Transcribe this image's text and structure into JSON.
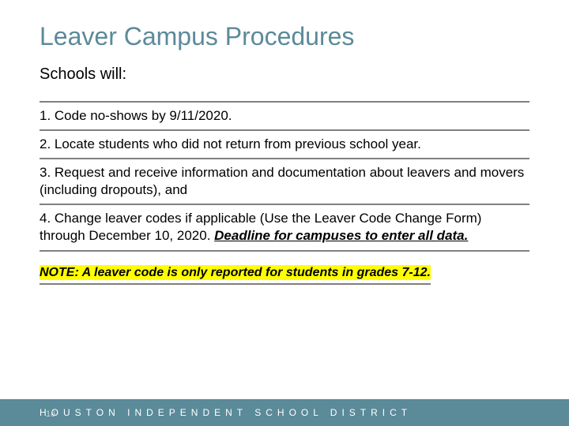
{
  "colors": {
    "title": "#5b8a99",
    "text": "#000000",
    "divider": "#808080",
    "highlight_bg": "#ffff00",
    "footer_bg": "#5b8a99",
    "footer_text": "#ffffff",
    "background": "#ffffff"
  },
  "title": "Leaver Campus Procedures",
  "subtitle": "Schools will:",
  "items": [
    "1. Code no-shows by 9/11/2020.",
    "2. Locate students who did not return from previous school year.",
    "3. Request and receive information and documentation about leavers and movers (including dropouts), and",
    "4. Change leaver codes if applicable (Use the Leaver Code Change Form) through December 10, 2020. "
  ],
  "item4_emphasis": "Deadline for campuses to enter all data.",
  "note_label": "NOTE:",
  "note_text": " A leaver code is only reported for students in grades 7-12.",
  "page_number": "16",
  "footer": "HOUSTON INDEPENDENT SCHOOL DISTRICT"
}
